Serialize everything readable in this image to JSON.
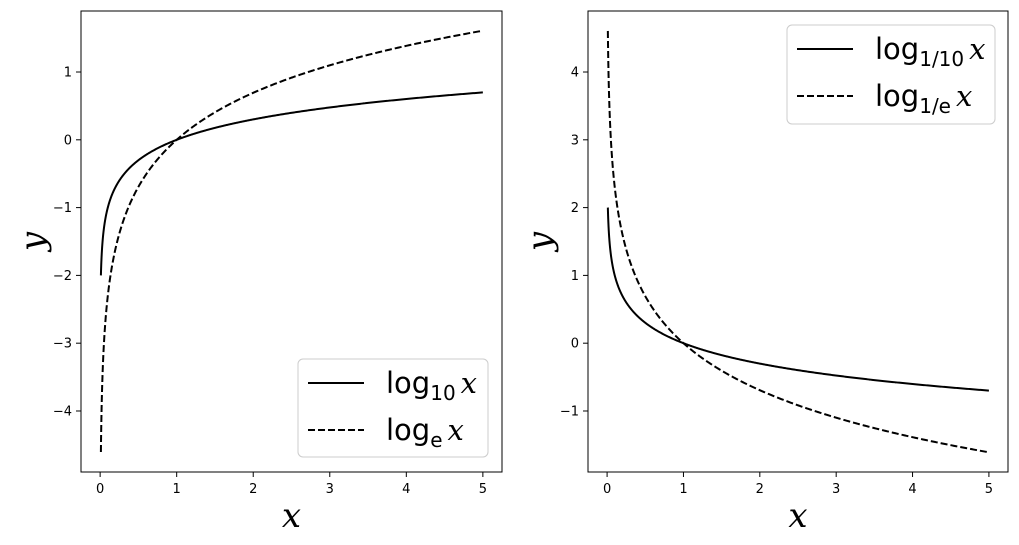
{
  "chart_data": [
    {
      "type": "line",
      "xlabel": "x",
      "ylabel": "y",
      "xlim": [
        -0.25,
        5.25
      ],
      "ylim": [
        -4.9,
        1.9
      ],
      "xticks": [
        0,
        1,
        2,
        3,
        4,
        5
      ],
      "yticks": [
        -4,
        -3,
        -2,
        -1,
        0,
        1
      ],
      "legend_position": "lower-right",
      "x_range": [
        0.01,
        5
      ],
      "series": [
        {
          "name": "log10 x",
          "label_base": "log",
          "label_sub": "10",
          "label_var": "x",
          "style": "solid",
          "base": 10,
          "points": [
            [
              0.01,
              -2.0
            ],
            [
              0.1,
              -1.0
            ],
            [
              0.5,
              -0.301
            ],
            [
              1,
              0
            ],
            [
              2,
              0.301
            ],
            [
              3,
              0.477
            ],
            [
              4,
              0.602
            ],
            [
              5,
              0.699
            ]
          ]
        },
        {
          "name": "loge x",
          "label_base": "log",
          "label_sub": "e",
          "label_var": "x",
          "style": "dashed",
          "base": 2.718281828,
          "points": [
            [
              0.01,
              -4.605
            ],
            [
              0.1,
              -2.303
            ],
            [
              0.5,
              -0.693
            ],
            [
              1,
              0
            ],
            [
              2,
              0.693
            ],
            [
              3,
              1.099
            ],
            [
              4,
              1.386
            ],
            [
              5,
              1.609
            ]
          ]
        }
      ]
    },
    {
      "type": "line",
      "xlabel": "x",
      "ylabel": "y",
      "xlim": [
        -0.25,
        5.25
      ],
      "ylim": [
        -1.9,
        4.9
      ],
      "xticks": [
        0,
        1,
        2,
        3,
        4,
        5
      ],
      "yticks": [
        -1,
        0,
        1,
        2,
        3,
        4
      ],
      "legend_position": "upper-right",
      "x_range": [
        0.01,
        5
      ],
      "series": [
        {
          "name": "log1/10 x",
          "label_base": "log",
          "label_sub": "1/10",
          "label_var": "x",
          "style": "solid",
          "base": 0.1,
          "points": [
            [
              0.01,
              2.0
            ],
            [
              0.1,
              1.0
            ],
            [
              0.5,
              0.301
            ],
            [
              1,
              0
            ],
            [
              2,
              -0.301
            ],
            [
              3,
              -0.477
            ],
            [
              4,
              -0.602
            ],
            [
              5,
              -0.699
            ]
          ]
        },
        {
          "name": "log1/e x",
          "label_base": "log",
          "label_sub": "1/e",
          "label_var": "x",
          "style": "dashed",
          "base": 0.367879441,
          "points": [
            [
              0.01,
              4.605
            ],
            [
              0.1,
              2.303
            ],
            [
              0.5,
              0.693
            ],
            [
              1,
              0
            ],
            [
              2,
              -0.693
            ],
            [
              3,
              -1.099
            ],
            [
              4,
              -1.386
            ],
            [
              5,
              -1.609
            ]
          ]
        }
      ]
    }
  ]
}
